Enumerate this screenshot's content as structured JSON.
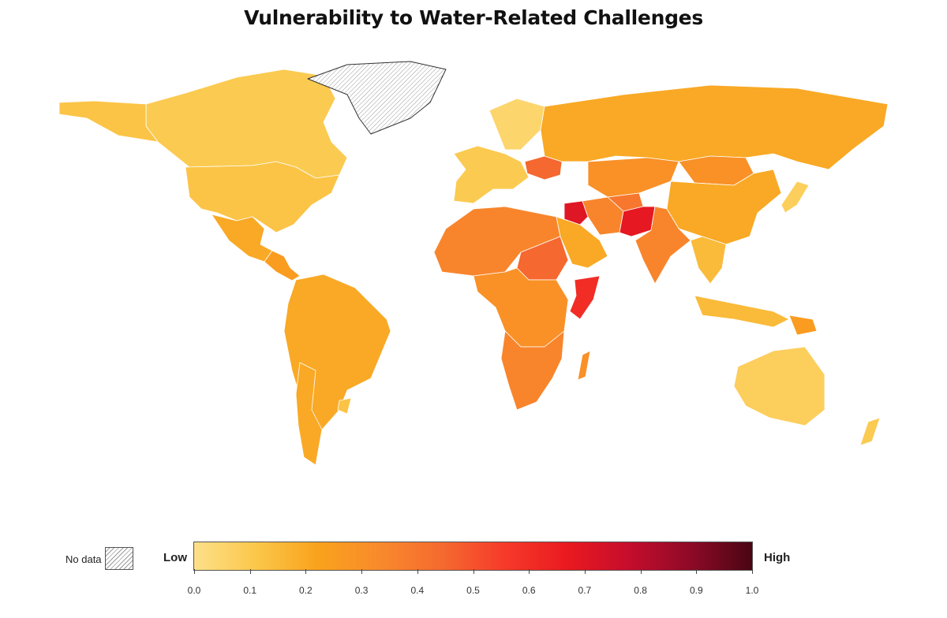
{
  "title": "Vulnerability to Water-Related Challenges",
  "legend": {
    "no_data_label": "No data",
    "low_label": "Low",
    "high_label": "High",
    "ticks": [
      "0.0",
      "0.1",
      "0.2",
      "0.3",
      "0.4",
      "0.5",
      "0.6",
      "0.7",
      "0.8",
      "0.9",
      "1.0"
    ],
    "scale_colors": [
      "#fde08a",
      "#fbc74a",
      "#f9a21c",
      "#f98a2c",
      "#f56a2f",
      "#f63a2a",
      "#ea1a20",
      "#c60d2c",
      "#8e0a27",
      "#4a0613"
    ]
  },
  "regions": [
    {
      "name": "Canada",
      "value": 0.1
    },
    {
      "name": "Greenland",
      "value": null
    },
    {
      "name": "United States",
      "value": 0.12
    },
    {
      "name": "Mexico",
      "value": 0.2
    },
    {
      "name": "Central America",
      "value": 0.25
    },
    {
      "name": "South America",
      "value": 0.2
    },
    {
      "name": "Chile",
      "value": 0.2
    },
    {
      "name": "Uruguay",
      "value": 0.12
    },
    {
      "name": "Western Europe",
      "value": 0.1
    },
    {
      "name": "Scandinavia",
      "value": 0.05
    },
    {
      "name": "Ukraine",
      "value": 0.45
    },
    {
      "name": "Russia",
      "value": 0.2
    },
    {
      "name": "Central Asia",
      "value": 0.3
    },
    {
      "name": "Mongolia",
      "value": 0.3
    },
    {
      "name": "China",
      "value": 0.2
    },
    {
      "name": "Japan",
      "value": 0.08
    },
    {
      "name": "North Africa",
      "value": 0.35
    },
    {
      "name": "Sudan",
      "value": 0.45
    },
    {
      "name": "Somalia",
      "value": 0.6
    },
    {
      "name": "Arabian Peninsula",
      "value": 0.2
    },
    {
      "name": "Iraq",
      "value": 0.7
    },
    {
      "name": "Iran",
      "value": 0.35
    },
    {
      "name": "Afghanistan",
      "value": 0.4
    },
    {
      "name": "Pakistan",
      "value": 0.68
    },
    {
      "name": "India",
      "value": 0.35
    },
    {
      "name": "Southeast Asia",
      "value": 0.15
    },
    {
      "name": "Indonesia",
      "value": 0.15
    },
    {
      "name": "Papua New Guinea",
      "value": 0.25
    },
    {
      "name": "Central Africa",
      "value": 0.3
    },
    {
      "name": "Southern Africa",
      "value": 0.35
    },
    {
      "name": "Madagascar",
      "value": 0.3
    },
    {
      "name": "Australia",
      "value": 0.08
    },
    {
      "name": "New Zealand",
      "value": 0.1
    }
  ]
}
